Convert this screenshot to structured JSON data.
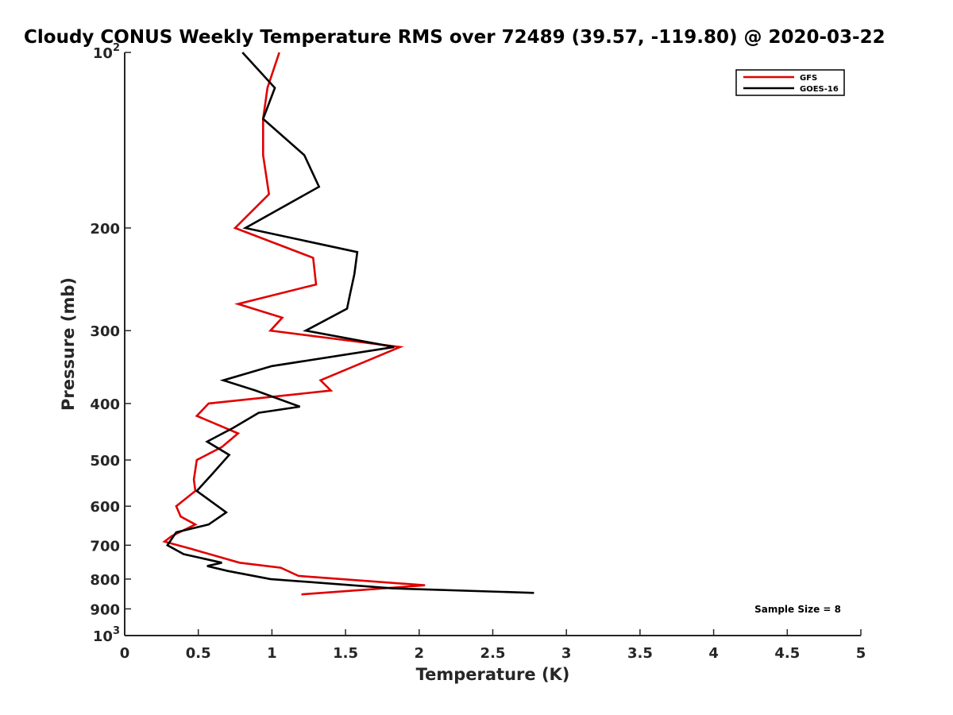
{
  "chart_data": {
    "type": "line",
    "title": "Cloudy CONUS Weekly Temperature RMS over 72489 (39.57, -119.80) @ 2020-03-22",
    "xlabel": "Temperature (K)",
    "ylabel": "Pressure (mb)",
    "xlim": [
      0,
      5
    ],
    "ylim": [
      100,
      1000
    ],
    "yscale": "log",
    "y_reversed": true,
    "grid": false,
    "legend_position": "top-right",
    "x_ticks": [
      0,
      0.5,
      1,
      1.5,
      2,
      2.5,
      3,
      3.5,
      4,
      4.5,
      5
    ],
    "x_tick_labels": [
      "0",
      "0.5",
      "1",
      "1.5",
      "2",
      "2.5",
      "3",
      "3.5",
      "4",
      "4.5",
      "5"
    ],
    "y_ticks": [
      100,
      200,
      300,
      400,
      500,
      600,
      700,
      800,
      900,
      1000
    ],
    "y_tick_labels": [
      {
        "base": "10",
        "exp": "2"
      },
      {
        "base": "200",
        "exp": ""
      },
      {
        "base": "300",
        "exp": ""
      },
      {
        "base": "400",
        "exp": ""
      },
      {
        "base": "500",
        "exp": ""
      },
      {
        "base": "600",
        "exp": ""
      },
      {
        "base": "700",
        "exp": ""
      },
      {
        "base": "800",
        "exp": ""
      },
      {
        "base": "900",
        "exp": ""
      },
      {
        "base": "10",
        "exp": "3"
      }
    ],
    "annotation": "Sample Size = 8",
    "series": [
      {
        "name": "GFS",
        "color": "#e00000",
        "points": [
          [
            1.05,
            100
          ],
          [
            0.97,
            115
          ],
          [
            0.94,
            130
          ],
          [
            0.94,
            150
          ],
          [
            0.98,
            175
          ],
          [
            0.75,
            200
          ],
          [
            1.28,
            225
          ],
          [
            1.3,
            250
          ],
          [
            0.77,
            270
          ],
          [
            1.07,
            285
          ],
          [
            0.99,
            300
          ],
          [
            1.87,
            320
          ],
          [
            1.33,
            365
          ],
          [
            1.4,
            380
          ],
          [
            0.57,
            400
          ],
          [
            0.49,
            420
          ],
          [
            0.77,
            450
          ],
          [
            0.66,
            475
          ],
          [
            0.49,
            500
          ],
          [
            0.47,
            540
          ],
          [
            0.48,
            565
          ],
          [
            0.35,
            600
          ],
          [
            0.38,
            625
          ],
          [
            0.48,
            645
          ],
          [
            0.32,
            675
          ],
          [
            0.27,
            690
          ],
          [
            0.36,
            700
          ],
          [
            0.45,
            710
          ],
          [
            0.78,
            750
          ],
          [
            1.06,
            765
          ],
          [
            1.18,
            790
          ],
          [
            2.04,
            820
          ],
          [
            1.2,
            850
          ]
        ]
      },
      {
        "name": "GOES-16",
        "color": "#000000",
        "points": [
          [
            0.8,
            100
          ],
          [
            1.02,
            115
          ],
          [
            0.94,
            130
          ],
          [
            1.22,
            150
          ],
          [
            1.32,
            170
          ],
          [
            0.82,
            200
          ],
          [
            1.58,
            220
          ],
          [
            1.56,
            240
          ],
          [
            1.53,
            260
          ],
          [
            1.51,
            275
          ],
          [
            1.23,
            300
          ],
          [
            1.83,
            320
          ],
          [
            1.0,
            345
          ],
          [
            0.67,
            365
          ],
          [
            0.89,
            380
          ],
          [
            1.19,
            405
          ],
          [
            0.91,
            415
          ],
          [
            0.74,
            440
          ],
          [
            0.56,
            465
          ],
          [
            0.71,
            490
          ],
          [
            0.59,
            530
          ],
          [
            0.49,
            565
          ],
          [
            0.69,
            615
          ],
          [
            0.57,
            645
          ],
          [
            0.35,
            665
          ],
          [
            0.29,
            700
          ],
          [
            0.4,
            725
          ],
          [
            0.66,
            750
          ],
          [
            0.56,
            760
          ],
          [
            0.7,
            775
          ],
          [
            0.99,
            800
          ],
          [
            1.82,
            830
          ],
          [
            2.78,
            845
          ]
        ]
      }
    ]
  }
}
